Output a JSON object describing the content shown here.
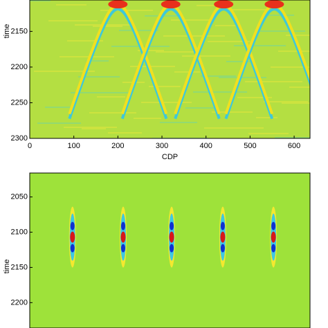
{
  "chart_data": [
    {
      "type": "heatmap",
      "ylabel": "time",
      "xlabel": "CDP",
      "xlim": [
        0,
        636
      ],
      "xticks": [
        0,
        100,
        200,
        300,
        400,
        500,
        600
      ],
      "ylim": [
        2106,
        2300
      ],
      "yticks": [
        2150,
        2200,
        2250,
        2300
      ],
      "reverse_y": true,
      "color": "#b4df42",
      "events": {
        "x": [
          200,
          320,
          440,
          555
        ],
        "y": [
          2112,
          2112,
          2112,
          2112
        ]
      }
    },
    {
      "type": "wavelet",
      "ylabel": "time",
      "xlim": [
        0,
        636
      ],
      "ylim": [
        2016,
        2236
      ],
      "yticks": [
        2050,
        2100,
        2150,
        2200
      ],
      "reverse_y": true,
      "color": "#9ee23a",
      "events": {
        "x": [
          97,
          212,
          322,
          438,
          553
        ],
        "y": [
          2107,
          2107,
          2107,
          2107,
          2107
        ]
      }
    }
  ]
}
